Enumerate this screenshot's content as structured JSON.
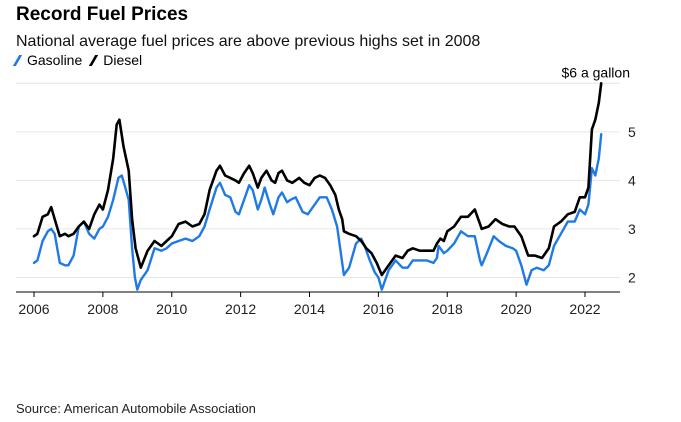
{
  "header": {
    "title": "Record Fuel Prices",
    "subtitle": "National average fuel prices are above previous highs set in 2008"
  },
  "footer": {
    "source": "Source: American Automobile Association"
  },
  "chart_data": {
    "type": "line",
    "title": "Record Fuel Prices",
    "subtitle": "National average fuel prices are above previous highs set in 2008",
    "xlabel": "",
    "ylabel": "",
    "xlim": [
      2006,
      2022.9
    ],
    "ylim": [
      1.7,
      6.15
    ],
    "x_ticks": [
      2006,
      2008,
      2010,
      2012,
      2014,
      2016,
      2018,
      2020,
      2022
    ],
    "y_ticks": [
      2,
      3,
      4,
      5
    ],
    "grid": "horizontal",
    "legend_position": "top-left",
    "annotation": {
      "text": "$6 a gallon",
      "x": 2022.45,
      "y": 6.0
    },
    "series": [
      {
        "name": "Gasoline",
        "color": "#1f7ae6",
        "points": [
          [
            2006.0,
            2.3
          ],
          [
            2006.1,
            2.35
          ],
          [
            2006.25,
            2.75
          ],
          [
            2006.4,
            2.95
          ],
          [
            2006.5,
            3.0
          ],
          [
            2006.6,
            2.9
          ],
          [
            2006.75,
            2.3
          ],
          [
            2006.9,
            2.25
          ],
          [
            2007.0,
            2.25
          ],
          [
            2007.15,
            2.45
          ],
          [
            2007.3,
            3.05
          ],
          [
            2007.45,
            3.15
          ],
          [
            2007.6,
            2.9
          ],
          [
            2007.75,
            2.8
          ],
          [
            2007.9,
            3.0
          ],
          [
            2008.0,
            3.05
          ],
          [
            2008.15,
            3.25
          ],
          [
            2008.3,
            3.6
          ],
          [
            2008.45,
            4.05
          ],
          [
            2008.55,
            4.1
          ],
          [
            2008.65,
            3.85
          ],
          [
            2008.75,
            3.6
          ],
          [
            2008.85,
            2.6
          ],
          [
            2008.93,
            2.0
          ],
          [
            2009.0,
            1.75
          ],
          [
            2009.1,
            1.95
          ],
          [
            2009.3,
            2.15
          ],
          [
            2009.5,
            2.6
          ],
          [
            2009.7,
            2.55
          ],
          [
            2009.85,
            2.6
          ],
          [
            2010.0,
            2.7
          ],
          [
            2010.2,
            2.75
          ],
          [
            2010.4,
            2.8
          ],
          [
            2010.6,
            2.75
          ],
          [
            2010.8,
            2.85
          ],
          [
            2010.95,
            3.05
          ],
          [
            2011.1,
            3.4
          ],
          [
            2011.3,
            3.85
          ],
          [
            2011.4,
            3.95
          ],
          [
            2011.55,
            3.7
          ],
          [
            2011.7,
            3.65
          ],
          [
            2011.85,
            3.35
          ],
          [
            2011.95,
            3.3
          ],
          [
            2012.1,
            3.6
          ],
          [
            2012.25,
            3.9
          ],
          [
            2012.35,
            3.8
          ],
          [
            2012.5,
            3.4
          ],
          [
            2012.6,
            3.6
          ],
          [
            2012.7,
            3.85
          ],
          [
            2012.85,
            3.5
          ],
          [
            2012.95,
            3.3
          ],
          [
            2013.1,
            3.65
          ],
          [
            2013.2,
            3.75
          ],
          [
            2013.35,
            3.55
          ],
          [
            2013.45,
            3.6
          ],
          [
            2013.6,
            3.65
          ],
          [
            2013.8,
            3.35
          ],
          [
            2013.95,
            3.3
          ],
          [
            2014.1,
            3.45
          ],
          [
            2014.3,
            3.65
          ],
          [
            2014.5,
            3.65
          ],
          [
            2014.65,
            3.4
          ],
          [
            2014.8,
            3.05
          ],
          [
            2014.9,
            2.55
          ],
          [
            2015.0,
            2.05
          ],
          [
            2015.15,
            2.2
          ],
          [
            2015.35,
            2.7
          ],
          [
            2015.5,
            2.8
          ],
          [
            2015.6,
            2.65
          ],
          [
            2015.75,
            2.35
          ],
          [
            2015.9,
            2.1
          ],
          [
            2016.0,
            2.0
          ],
          [
            2016.1,
            1.75
          ],
          [
            2016.3,
            2.15
          ],
          [
            2016.5,
            2.35
          ],
          [
            2016.7,
            2.2
          ],
          [
            2016.85,
            2.2
          ],
          [
            2017.0,
            2.35
          ],
          [
            2017.2,
            2.35
          ],
          [
            2017.4,
            2.35
          ],
          [
            2017.6,
            2.3
          ],
          [
            2017.7,
            2.4
          ],
          [
            2017.75,
            2.65
          ],
          [
            2017.9,
            2.5
          ],
          [
            2018.0,
            2.55
          ],
          [
            2018.2,
            2.7
          ],
          [
            2018.4,
            2.95
          ],
          [
            2018.6,
            2.85
          ],
          [
            2018.8,
            2.85
          ],
          [
            2018.95,
            2.35
          ],
          [
            2019.0,
            2.25
          ],
          [
            2019.15,
            2.5
          ],
          [
            2019.35,
            2.85
          ],
          [
            2019.5,
            2.75
          ],
          [
            2019.7,
            2.65
          ],
          [
            2019.9,
            2.6
          ],
          [
            2020.0,
            2.55
          ],
          [
            2020.15,
            2.25
          ],
          [
            2020.3,
            1.85
          ],
          [
            2020.45,
            2.15
          ],
          [
            2020.6,
            2.2
          ],
          [
            2020.8,
            2.15
          ],
          [
            2020.95,
            2.25
          ],
          [
            2021.1,
            2.65
          ],
          [
            2021.3,
            2.9
          ],
          [
            2021.5,
            3.15
          ],
          [
            2021.7,
            3.15
          ],
          [
            2021.85,
            3.4
          ],
          [
            2022.0,
            3.3
          ],
          [
            2022.1,
            3.5
          ],
          [
            2022.2,
            4.25
          ],
          [
            2022.3,
            4.1
          ],
          [
            2022.4,
            4.45
          ],
          [
            2022.47,
            4.95
          ]
        ]
      },
      {
        "name": "Diesel",
        "color": "#000000",
        "points": [
          [
            2006.0,
            2.85
          ],
          [
            2006.1,
            2.9
          ],
          [
            2006.25,
            3.25
          ],
          [
            2006.4,
            3.3
          ],
          [
            2006.5,
            3.45
          ],
          [
            2006.6,
            3.2
          ],
          [
            2006.75,
            2.85
          ],
          [
            2006.9,
            2.9
          ],
          [
            2007.0,
            2.85
          ],
          [
            2007.15,
            2.9
          ],
          [
            2007.3,
            3.05
          ],
          [
            2007.45,
            3.15
          ],
          [
            2007.6,
            3.0
          ],
          [
            2007.75,
            3.3
          ],
          [
            2007.9,
            3.5
          ],
          [
            2008.0,
            3.4
          ],
          [
            2008.15,
            3.8
          ],
          [
            2008.3,
            4.45
          ],
          [
            2008.4,
            5.15
          ],
          [
            2008.48,
            5.25
          ],
          [
            2008.6,
            4.7
          ],
          [
            2008.75,
            4.2
          ],
          [
            2008.85,
            3.2
          ],
          [
            2008.95,
            2.6
          ],
          [
            2009.1,
            2.2
          ],
          [
            2009.3,
            2.55
          ],
          [
            2009.5,
            2.75
          ],
          [
            2009.7,
            2.65
          ],
          [
            2009.85,
            2.75
          ],
          [
            2010.0,
            2.85
          ],
          [
            2010.2,
            3.1
          ],
          [
            2010.4,
            3.15
          ],
          [
            2010.6,
            3.05
          ],
          [
            2010.8,
            3.1
          ],
          [
            2010.95,
            3.3
          ],
          [
            2011.1,
            3.8
          ],
          [
            2011.3,
            4.2
          ],
          [
            2011.4,
            4.3
          ],
          [
            2011.55,
            4.1
          ],
          [
            2011.7,
            4.05
          ],
          [
            2011.85,
            4.0
          ],
          [
            2011.95,
            3.95
          ],
          [
            2012.1,
            4.15
          ],
          [
            2012.25,
            4.3
          ],
          [
            2012.35,
            4.15
          ],
          [
            2012.5,
            3.85
          ],
          [
            2012.6,
            4.05
          ],
          [
            2012.75,
            4.2
          ],
          [
            2012.9,
            4.0
          ],
          [
            2013.0,
            3.95
          ],
          [
            2013.1,
            4.15
          ],
          [
            2013.2,
            4.2
          ],
          [
            2013.35,
            4.0
          ],
          [
            2013.5,
            3.95
          ],
          [
            2013.7,
            4.05
          ],
          [
            2013.85,
            3.95
          ],
          [
            2014.0,
            3.9
          ],
          [
            2014.15,
            4.05
          ],
          [
            2014.3,
            4.1
          ],
          [
            2014.45,
            4.05
          ],
          [
            2014.6,
            3.9
          ],
          [
            2014.75,
            3.7
          ],
          [
            2014.85,
            3.4
          ],
          [
            2014.95,
            3.2
          ],
          [
            2015.0,
            2.95
          ],
          [
            2015.15,
            2.9
          ],
          [
            2015.35,
            2.85
          ],
          [
            2015.5,
            2.75
          ],
          [
            2015.65,
            2.6
          ],
          [
            2015.8,
            2.5
          ],
          [
            2015.95,
            2.3
          ],
          [
            2016.1,
            2.05
          ],
          [
            2016.3,
            2.25
          ],
          [
            2016.5,
            2.45
          ],
          [
            2016.7,
            2.4
          ],
          [
            2016.85,
            2.55
          ],
          [
            2017.0,
            2.6
          ],
          [
            2017.2,
            2.55
          ],
          [
            2017.4,
            2.55
          ],
          [
            2017.6,
            2.55
          ],
          [
            2017.7,
            2.7
          ],
          [
            2017.8,
            2.8
          ],
          [
            2017.9,
            2.75
          ],
          [
            2018.0,
            2.95
          ],
          [
            2018.2,
            3.05
          ],
          [
            2018.4,
            3.25
          ],
          [
            2018.6,
            3.25
          ],
          [
            2018.8,
            3.4
          ],
          [
            2018.95,
            3.1
          ],
          [
            2019.0,
            3.0
          ],
          [
            2019.2,
            3.05
          ],
          [
            2019.4,
            3.2
          ],
          [
            2019.6,
            3.1
          ],
          [
            2019.8,
            3.05
          ],
          [
            2019.95,
            3.05
          ],
          [
            2020.0,
            3.0
          ],
          [
            2020.15,
            2.85
          ],
          [
            2020.35,
            2.45
          ],
          [
            2020.55,
            2.45
          ],
          [
            2020.75,
            2.4
          ],
          [
            2020.95,
            2.6
          ],
          [
            2021.1,
            3.05
          ],
          [
            2021.3,
            3.15
          ],
          [
            2021.5,
            3.3
          ],
          [
            2021.7,
            3.35
          ],
          [
            2021.85,
            3.65
          ],
          [
            2022.0,
            3.65
          ],
          [
            2022.1,
            3.85
          ],
          [
            2022.2,
            5.05
          ],
          [
            2022.3,
            5.25
          ],
          [
            2022.4,
            5.6
          ],
          [
            2022.47,
            6.0
          ]
        ]
      }
    ]
  }
}
